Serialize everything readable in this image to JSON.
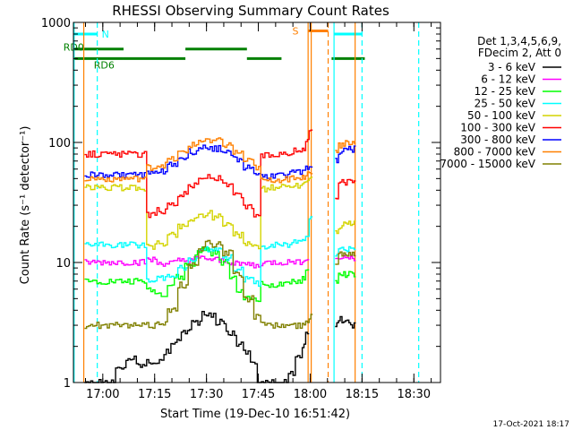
{
  "chart_data": {
    "type": "line",
    "title": "RHESSI Observing Summary Count Rates",
    "xlabel": "Start Time (19-Dec-10 16:51:42)",
    "ylabel": "Count Rate (s⁻¹ detector⁻¹)",
    "x_unit": "minutes after 16:51:42",
    "xlim": [
      -0.2,
      106
    ],
    "ylim": [
      1,
      1000
    ],
    "y_scale": "log",
    "x_ticks": [
      {
        "x": 8.3,
        "label": "17:00"
      },
      {
        "x": 23.3,
        "label": "17:15"
      },
      {
        "x": 38.3,
        "label": "17:30"
      },
      {
        "x": 53.3,
        "label": "17:45"
      },
      {
        "x": 68.3,
        "label": "18:00"
      },
      {
        "x": 83.3,
        "label": "18:15"
      },
      {
        "x": 98.3,
        "label": "18:30"
      }
    ],
    "y_ticks": [
      {
        "y": 1,
        "label": "1"
      },
      {
        "y": 10,
        "label": "10"
      },
      {
        "y": 100,
        "label": "100"
      },
      {
        "y": 1000,
        "label": "1000"
      }
    ],
    "legend": {
      "placement": "right",
      "header": [
        "Det 1,3,4,5,6,9,",
        "FDecim 2, Att 0"
      ],
      "entries": [
        "3 - 6 keV",
        "6 - 12 keV",
        "12 - 25 keV",
        "25 - 50 keV",
        "50 - 100 keV",
        "100 - 300 keV",
        "300 - 800 keV",
        "800 - 7000 keV",
        "7000 - 15000 keV"
      ]
    },
    "series": [
      {
        "color": "#000000",
        "points": [
          [
            3,
            1
          ],
          [
            6,
            1
          ],
          [
            9,
            1
          ],
          [
            12,
            1.3
          ],
          [
            15,
            1.6
          ],
          [
            18,
            1.4
          ],
          [
            21,
            1.5
          ],
          [
            24,
            1.5
          ],
          [
            26,
            1.8
          ],
          [
            28,
            2.2
          ],
          [
            31,
            2.7
          ],
          [
            34,
            3.2
          ],
          [
            37,
            3.7
          ],
          [
            39,
            3.6
          ],
          [
            41,
            3.2
          ],
          [
            44,
            2.6
          ],
          [
            47,
            2.1
          ],
          [
            49,
            1.8
          ],
          [
            51,
            1.5
          ],
          [
            53,
            1
          ],
          [
            56,
            1
          ],
          [
            59,
            1
          ],
          [
            62,
            1.2
          ],
          [
            64,
            1.6
          ],
          [
            66,
            2
          ],
          [
            67,
            2.5
          ],
          [
            75.5,
            3.1
          ],
          [
            76.5,
            3.4
          ],
          [
            77.5,
            3.3
          ],
          [
            78.5,
            3.2
          ],
          [
            79.5,
            3.2
          ],
          [
            80.5,
            3
          ]
        ]
      },
      {
        "color": "#ff00ff",
        "points": [
          [
            3,
            10
          ],
          [
            9,
            10
          ],
          [
            15,
            10
          ],
          [
            19,
            10
          ],
          [
            21,
            10.5
          ],
          [
            24,
            9.8
          ],
          [
            27,
            9.9
          ],
          [
            30,
            10.3
          ],
          [
            33,
            10.6
          ],
          [
            36,
            10.8
          ],
          [
            39,
            10.5
          ],
          [
            42,
            10.2
          ],
          [
            45,
            10
          ],
          [
            49,
            9.6
          ],
          [
            52,
            9.3
          ],
          [
            54,
            9.9
          ],
          [
            57,
            10
          ],
          [
            60,
            10
          ],
          [
            63,
            10.2
          ],
          [
            66,
            10.5
          ],
          [
            67,
            11
          ],
          [
            75.5,
            10.5
          ],
          [
            76.5,
            11
          ],
          [
            77.5,
            11
          ],
          [
            78.5,
            11
          ],
          [
            79.5,
            11
          ],
          [
            80.5,
            11
          ]
        ]
      },
      {
        "color": "#00ff00",
        "points": [
          [
            3,
            7
          ],
          [
            9,
            7
          ],
          [
            15,
            7
          ],
          [
            19,
            7
          ],
          [
            21,
            5.8
          ],
          [
            24,
            5.5
          ],
          [
            27,
            6.5
          ],
          [
            29,
            7.5
          ],
          [
            32,
            9.5
          ],
          [
            35,
            12
          ],
          [
            37,
            13
          ],
          [
            39,
            12
          ],
          [
            42,
            10
          ],
          [
            45,
            7.5
          ],
          [
            47,
            6
          ],
          [
            49,
            5
          ],
          [
            52,
            5
          ],
          [
            54,
            6.6
          ],
          [
            57,
            6.5
          ],
          [
            60,
            6.5
          ],
          [
            63,
            7
          ],
          [
            66,
            7.5
          ],
          [
            67,
            8.5
          ],
          [
            75.5,
            7
          ],
          [
            76.5,
            8
          ],
          [
            77.5,
            8
          ],
          [
            78.5,
            8
          ],
          [
            79.5,
            8
          ],
          [
            80.5,
            8
          ]
        ]
      },
      {
        "color": "#00ffff",
        "points": [
          [
            3,
            14
          ],
          [
            9,
            14
          ],
          [
            15,
            14
          ],
          [
            19,
            14
          ],
          [
            21,
            7
          ],
          [
            24,
            7.5
          ],
          [
            27,
            8
          ],
          [
            30,
            9
          ],
          [
            33,
            10.5
          ],
          [
            36,
            12.5
          ],
          [
            38,
            13
          ],
          [
            40,
            12.5
          ],
          [
            43,
            11
          ],
          [
            46,
            9
          ],
          [
            49,
            7.2
          ],
          [
            52,
            6.7
          ],
          [
            54,
            13.5
          ],
          [
            57,
            14
          ],
          [
            60,
            14
          ],
          [
            63,
            15
          ],
          [
            66,
            16
          ],
          [
            67,
            17.5
          ],
          [
            68,
            24
          ],
          [
            75.5,
            12
          ],
          [
            76.5,
            13
          ],
          [
            77.5,
            13
          ],
          [
            78.5,
            13
          ],
          [
            79.5,
            13.5
          ],
          [
            80.5,
            13
          ]
        ]
      },
      {
        "color": "#d4d400",
        "points": [
          [
            3,
            42
          ],
          [
            6,
            42
          ],
          [
            9,
            42
          ],
          [
            12,
            42
          ],
          [
            15,
            42
          ],
          [
            19,
            42
          ],
          [
            21,
            13.5
          ],
          [
            24,
            14.5
          ],
          [
            27,
            17
          ],
          [
            30,
            20
          ],
          [
            33,
            23
          ],
          [
            36,
            25
          ],
          [
            38,
            26
          ],
          [
            40,
            24
          ],
          [
            43,
            21
          ],
          [
            46,
            17
          ],
          [
            49,
            14.5
          ],
          [
            52,
            13.5
          ],
          [
            54,
            41
          ],
          [
            57,
            42
          ],
          [
            60,
            43
          ],
          [
            63,
            44
          ],
          [
            66,
            46
          ],
          [
            67,
            48
          ],
          [
            68,
            52
          ],
          [
            75.5,
            18
          ],
          [
            76.5,
            20
          ],
          [
            77.5,
            21
          ],
          [
            78.5,
            21
          ],
          [
            79.5,
            21
          ],
          [
            80.5,
            21
          ]
        ]
      },
      {
        "color": "#ff0000",
        "points": [
          [
            3,
            80
          ],
          [
            6,
            80
          ],
          [
            9,
            80
          ],
          [
            12,
            80
          ],
          [
            15,
            80
          ],
          [
            19,
            80
          ],
          [
            21,
            25
          ],
          [
            24,
            27
          ],
          [
            27,
            31
          ],
          [
            30,
            37
          ],
          [
            33,
            44
          ],
          [
            36,
            50
          ],
          [
            38,
            52
          ],
          [
            40,
            50
          ],
          [
            43,
            44
          ],
          [
            46,
            36
          ],
          [
            49,
            29
          ],
          [
            52,
            25
          ],
          [
            54,
            78
          ],
          [
            57,
            80
          ],
          [
            60,
            82
          ],
          [
            63,
            85
          ],
          [
            66,
            90
          ],
          [
            67,
            100
          ],
          [
            68,
            130
          ],
          [
            75.5,
            35
          ],
          [
            76.5,
            45
          ],
          [
            77.5,
            48
          ],
          [
            78.5,
            47
          ],
          [
            79.5,
            50
          ],
          [
            80.5,
            48
          ]
        ]
      },
      {
        "color": "#0000ff",
        "points": [
          [
            3,
            54
          ],
          [
            6,
            54
          ],
          [
            9,
            54
          ],
          [
            12,
            54
          ],
          [
            15,
            54
          ],
          [
            19,
            54
          ],
          [
            21,
            55
          ],
          [
            24,
            58
          ],
          [
            27,
            65
          ],
          [
            30,
            74
          ],
          [
            33,
            84
          ],
          [
            36,
            90
          ],
          [
            38,
            91
          ],
          [
            40,
            89
          ],
          [
            43,
            82
          ],
          [
            46,
            72
          ],
          [
            49,
            62
          ],
          [
            52,
            55
          ],
          [
            54,
            52
          ],
          [
            57,
            53
          ],
          [
            60,
            54
          ],
          [
            63,
            56
          ],
          [
            66,
            58
          ],
          [
            67,
            60
          ],
          [
            68,
            65
          ],
          [
            75.5,
            70
          ],
          [
            76.5,
            82
          ],
          [
            77.5,
            88
          ],
          [
            78.5,
            90
          ],
          [
            79.5,
            90
          ],
          [
            80.5,
            88
          ]
        ]
      },
      {
        "color": "#ff8000",
        "points": [
          [
            3,
            50
          ],
          [
            6,
            50
          ],
          [
            9,
            50
          ],
          [
            12,
            50
          ],
          [
            15,
            50
          ],
          [
            19,
            50
          ],
          [
            21,
            62
          ],
          [
            24,
            65
          ],
          [
            27,
            72
          ],
          [
            30,
            82
          ],
          [
            33,
            95
          ],
          [
            36,
            104
          ],
          [
            38,
            106
          ],
          [
            40,
            103
          ],
          [
            43,
            95
          ],
          [
            46,
            82
          ],
          [
            49,
            70
          ],
          [
            52,
            62
          ],
          [
            54,
            48
          ],
          [
            57,
            49
          ],
          [
            60,
            50
          ],
          [
            63,
            51
          ],
          [
            66,
            52
          ],
          [
            67,
            54
          ],
          [
            68,
            58
          ],
          [
            75.5,
            85
          ],
          [
            76.5,
            95
          ],
          [
            77.5,
            98
          ],
          [
            78.5,
            100
          ],
          [
            79.5,
            100
          ],
          [
            80.5,
            98
          ]
        ]
      },
      {
        "color": "#808000",
        "points": [
          [
            3,
            3
          ],
          [
            6,
            3
          ],
          [
            9,
            3
          ],
          [
            12,
            3
          ],
          [
            15,
            3
          ],
          [
            19,
            3
          ],
          [
            21,
            3
          ],
          [
            24,
            3.2
          ],
          [
            27,
            4
          ],
          [
            30,
            6.5
          ],
          [
            33,
            9.5
          ],
          [
            36,
            13
          ],
          [
            38,
            14.5
          ],
          [
            40,
            14
          ],
          [
            43,
            12
          ],
          [
            46,
            8
          ],
          [
            49,
            5
          ],
          [
            52,
            3.5
          ],
          [
            54,
            3
          ],
          [
            57,
            3
          ],
          [
            60,
            3
          ],
          [
            63,
            3
          ],
          [
            66,
            3
          ],
          [
            67,
            3.2
          ],
          [
            68,
            3.5
          ],
          [
            75.5,
            10
          ],
          [
            76.5,
            12
          ],
          [
            77.5,
            12
          ],
          [
            78.5,
            12
          ],
          [
            79.5,
            12
          ],
          [
            80.5,
            12
          ]
        ]
      }
    ],
    "markers": [
      {
        "x": 0,
        "color": "#00ffff"
      },
      {
        "x": 6.7,
        "color": "#00ffff",
        "dashed": true
      },
      {
        "x": 2.8,
        "color": "#ff8000"
      },
      {
        "x": 67.7,
        "color": "#ff8000"
      },
      {
        "x": 68.6,
        "color": "#ff8000"
      },
      {
        "x": 73.5,
        "color": "#ff8000",
        "dashed": true
      },
      {
        "x": 75.2,
        "color": "#00ffff"
      },
      {
        "x": 83.3,
        "color": "#00ffff",
        "dashed": true
      },
      {
        "x": 99.7,
        "color": "#00ffff",
        "dashed": true
      },
      {
        "x": 81.3,
        "color": "#ff8000"
      }
    ],
    "segments": [
      {
        "x1": 0,
        "x2": 6.7,
        "y": 800,
        "color": "#00ffff",
        "label": "N"
      },
      {
        "x1": 0,
        "x2": 14.3,
        "y": 600,
        "color": "#008000",
        "label": "RD0"
      },
      {
        "x1": 0,
        "x2": 14.3,
        "y": 500,
        "color": "#008000",
        "label": "RD6"
      },
      {
        "x1": 14.3,
        "x2": 32.2,
        "y": 500,
        "color": "#008000"
      },
      {
        "x1": 32.2,
        "x2": 50,
        "y": 600,
        "color": "#008000"
      },
      {
        "x1": 50,
        "x2": 60,
        "y": 500,
        "color": "#008000"
      },
      {
        "x1": 67.7,
        "x2": 73.5,
        "y": 850,
        "color": "#ff8000",
        "label": "S"
      },
      {
        "x1": 75.2,
        "x2": 83.3,
        "y": 800,
        "color": "#00ffff"
      },
      {
        "x1": 74.5,
        "x2": 84.1,
        "y": 500,
        "color": "#008000"
      }
    ],
    "footer": "17-Oct-2021 18:17"
  }
}
